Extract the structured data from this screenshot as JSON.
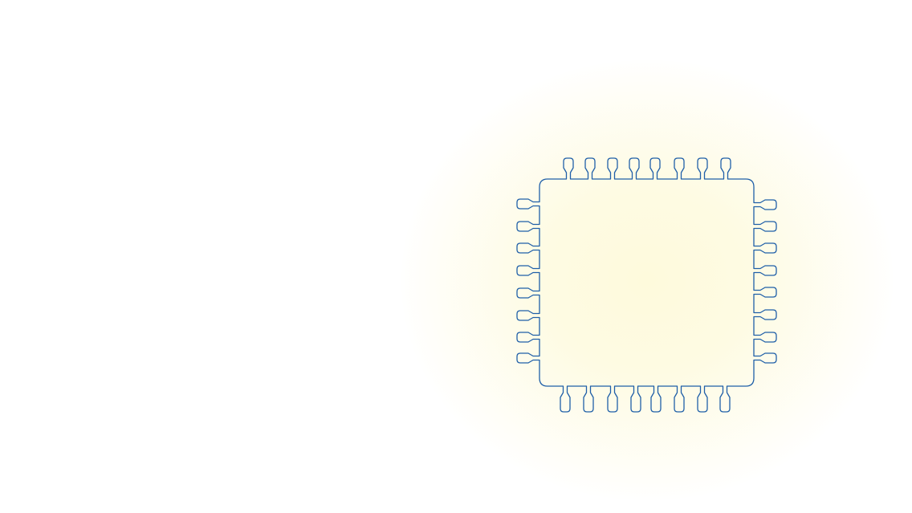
{
  "background_color": "#ffffff",
  "glow_color": "#fefadc",
  "outline_color": "#1f5fa8",
  "chip": {
    "icon": "microchip-icon",
    "pins": {
      "top": 8,
      "bottom": 8,
      "left": 8,
      "right": 8
    }
  }
}
